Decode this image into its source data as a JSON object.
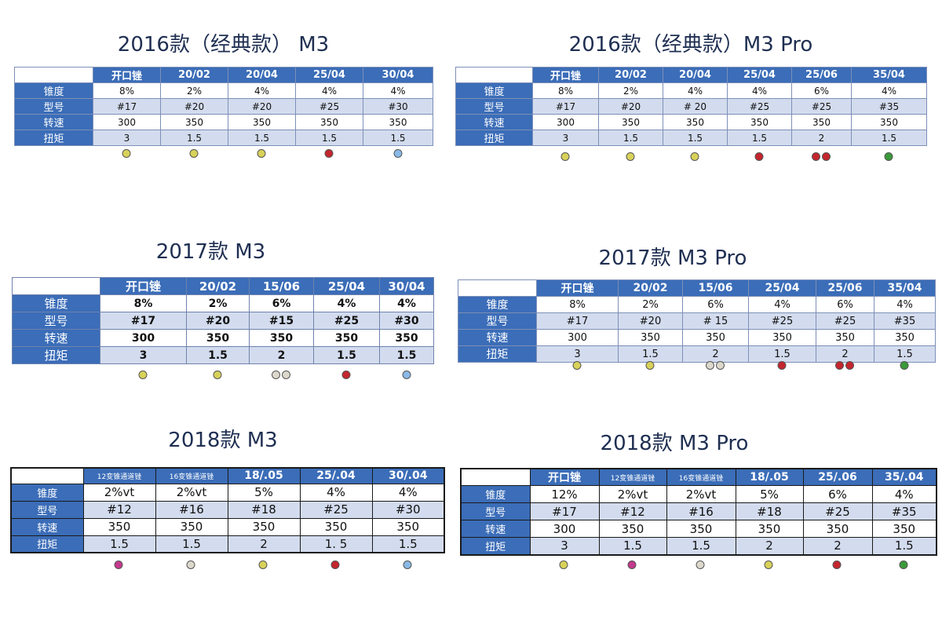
{
  "colors": {
    "header_blue": "#3b6db8",
    "row_light": "#d3dcee",
    "title_navy": "#1f2f52",
    "dot_yellow": "#d8d25a",
    "dot_red": "#c4262e",
    "dot_light_blue": "#8ab9e6",
    "dot_green": "#3a9a3a",
    "dot_gray": "#dcd8cc",
    "dot_magenta": "#c23a8c"
  },
  "tables": [
    {
      "id": "t2016-m3",
      "title": "2016款（经典款） M3",
      "headers": [
        "开口锉",
        "20/02",
        "20/04",
        "25/04",
        "30/04"
      ],
      "rows": [
        {
          "label": "锥度",
          "values": [
            "8%",
            "2%",
            "4%",
            "4%",
            "4%"
          ]
        },
        {
          "label": "型号",
          "values": [
            "#17",
            "#20",
            "#20",
            "#25",
            "#30"
          ]
        },
        {
          "label": "转速",
          "values": [
            "300",
            "350",
            "350",
            "350",
            "350"
          ]
        },
        {
          "label": "扭矩",
          "values": [
            "3",
            "1.5",
            "1.5",
            "1.5",
            "1.5"
          ]
        }
      ],
      "dots": [
        [
          "yellow"
        ],
        [
          "yellow"
        ],
        [
          "yellow"
        ],
        [
          "red"
        ],
        [
          "light_blue"
        ]
      ]
    },
    {
      "id": "t2016-m3pro",
      "title": "2016款（经典款）M3 Pro",
      "headers": [
        "开口锉",
        "20/02",
        "20/04",
        "25/04",
        "25/06",
        "35/04"
      ],
      "rows": [
        {
          "label": "锥度",
          "values": [
            "8%",
            "2%",
            "4%",
            "4%",
            "6%",
            "4%"
          ]
        },
        {
          "label": "型号",
          "values": [
            "#17",
            "#20",
            "# 20",
            "#25",
            "#25",
            "#35"
          ]
        },
        {
          "label": "转速",
          "values": [
            "300",
            "350",
            "350",
            "350",
            "350",
            "350"
          ]
        },
        {
          "label": "扭矩",
          "values": [
            "3",
            "1.5",
            "1.5",
            "1.5",
            "2",
            "1.5"
          ]
        }
      ],
      "dots": [
        [
          "yellow"
        ],
        [
          "yellow"
        ],
        [
          "yellow"
        ],
        [
          "red"
        ],
        [
          "red",
          "red"
        ],
        [
          "green"
        ]
      ]
    },
    {
      "id": "t2017-m3",
      "title": "2017款 M3",
      "headers": [
        "开口锉",
        "20/02",
        "15/06",
        "25/04",
        "30/04"
      ],
      "rows": [
        {
          "label": "锥度",
          "values": [
            "8%",
            "2%",
            "6%",
            "4%",
            "4%"
          ]
        },
        {
          "label": "型号",
          "values": [
            "#17",
            "#20",
            "#15",
            "#25",
            "#30"
          ]
        },
        {
          "label": "转速",
          "values": [
            "300",
            "350",
            "350",
            "350",
            "350"
          ]
        },
        {
          "label": "扭矩",
          "values": [
            "3",
            "1.5",
            "2",
            "1.5",
            "1.5"
          ]
        }
      ],
      "dots": [
        [
          "yellow"
        ],
        [
          "yellow"
        ],
        [
          "gray",
          "gray"
        ],
        [
          "red"
        ],
        [
          "light_blue"
        ]
      ]
    },
    {
      "id": "t2017-m3pro",
      "title": "2017款 M3 Pro",
      "headers": [
        "开口锉",
        "20/02",
        "15/06",
        "25/04",
        "25/06",
        "35/04"
      ],
      "rows": [
        {
          "label": "锥度",
          "values": [
            "8%",
            "2%",
            "6%",
            "4%",
            "6%",
            "4%"
          ]
        },
        {
          "label": "型号",
          "values": [
            "#17",
            "#20",
            "# 15",
            "#25",
            "#25",
            "#35"
          ]
        },
        {
          "label": "转速",
          "values": [
            "300",
            "350",
            "350",
            "350",
            "350",
            "350"
          ]
        },
        {
          "label": "扭矩",
          "values": [
            "3",
            "1.5",
            "2",
            "1.5",
            "2",
            "1.5"
          ]
        }
      ],
      "dots": [
        [
          "yellow"
        ],
        [
          "yellow"
        ],
        [
          "gray",
          "gray"
        ],
        [
          "red"
        ],
        [
          "red",
          "red"
        ],
        [
          "green"
        ]
      ]
    },
    {
      "id": "t2018-m3",
      "title": "2018款 M3",
      "headers": [
        "12变锥通道锉",
        "16变锥通道锉",
        "18/.05",
        "25/.04",
        "30/.04"
      ],
      "rows": [
        {
          "label": "锥度",
          "values": [
            "2%vt",
            "2%vt",
            "5%",
            "4%",
            "4%"
          ]
        },
        {
          "label": "型号",
          "values": [
            "#12",
            "#16",
            "#18",
            "#25",
            "#30"
          ]
        },
        {
          "label": "转速",
          "values": [
            "350",
            "350",
            "350",
            "350",
            "350"
          ]
        },
        {
          "label": "扭矩",
          "values": [
            "1.5",
            "1.5",
            "2",
            "1. 5",
            "1.5"
          ]
        }
      ],
      "dots": [
        [
          "magenta"
        ],
        [
          "gray"
        ],
        [
          "yellow"
        ],
        [
          "red"
        ],
        [
          "light_blue"
        ]
      ]
    },
    {
      "id": "t2018-m3pro",
      "title": "2018款 M3 Pro",
      "headers": [
        "开口锉",
        "12变锥通道锉",
        "16变锥通道锉",
        "18/.05",
        "25/.06",
        "35/.04"
      ],
      "rows": [
        {
          "label": "锥度",
          "values": [
            "12%",
            "2%vt",
            "2%vt",
            "5%",
            "6%",
            "4%"
          ]
        },
        {
          "label": "型号",
          "values": [
            "#17",
            "#12",
            "#16",
            "#18",
            "#25",
            "#35"
          ]
        },
        {
          "label": "转速",
          "values": [
            "300",
            "350",
            "350",
            "350",
            "350",
            "350"
          ]
        },
        {
          "label": "扭矩",
          "values": [
            "3",
            "1.5",
            "1.5",
            "2",
            "2",
            "1.5"
          ]
        }
      ],
      "dots": [
        [
          "yellow"
        ],
        [
          "magenta"
        ],
        [
          "gray"
        ],
        [
          "yellow"
        ],
        [
          "red"
        ],
        [
          "green"
        ]
      ]
    }
  ]
}
